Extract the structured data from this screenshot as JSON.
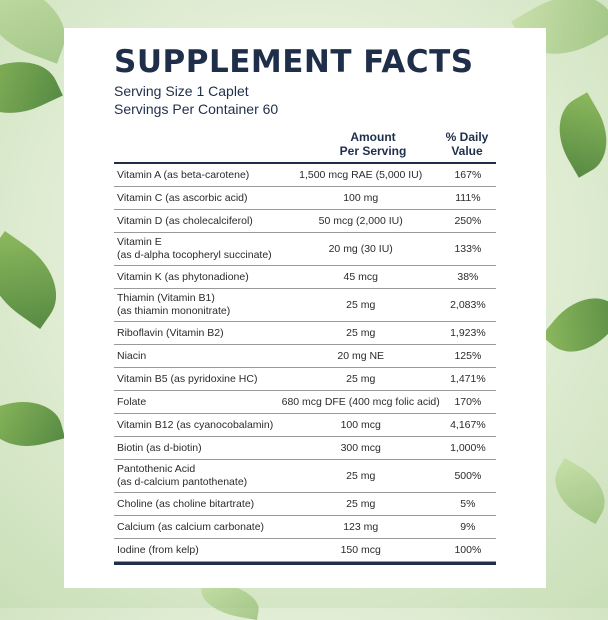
{
  "panel": {
    "title": "SUPPLEMENT FACTS",
    "serving_size": "Serving Size 1 Caplet",
    "servings_per_container": "Servings Per Container 60",
    "col_amount": "Amount\nPer Serving",
    "col_amount_line1": "Amount",
    "col_amount_line2": "Per Serving",
    "col_dv_line1": "% Daily",
    "col_dv_line2": "Value"
  },
  "rows": [
    {
      "name1": "Vitamin A (as beta-carotene)",
      "name2": "",
      "amount": "1,500 mcg RAE (5,000 IU)",
      "dv": "167%"
    },
    {
      "name1": "Vitamin C (as ascorbic acid)",
      "name2": "",
      "amount": "100 mg",
      "dv": "111%"
    },
    {
      "name1": "Vitamin D (as cholecalciferol)",
      "name2": "",
      "amount": "50 mcg (2,000 IU)",
      "dv": "250%"
    },
    {
      "name1": "Vitamin E",
      "name2": "(as d-alpha tocopheryl succinate)",
      "amount": "20 mg (30 IU)",
      "dv": "133%"
    },
    {
      "name1": "Vitamin K (as phytonadione)",
      "name2": "",
      "amount": "45 mcg",
      "dv": "38%"
    },
    {
      "name1": "Thiamin (Vitamin B1)",
      "name2": "(as thiamin mononitrate)",
      "amount": "25 mg",
      "dv": "2,083%"
    },
    {
      "name1": "Riboflavin (Vitamin B2)",
      "name2": "",
      "amount": "25 mg",
      "dv": "1,923%"
    },
    {
      "name1": "Niacin",
      "name2": "",
      "amount": "20 mg NE",
      "dv": "125%"
    },
    {
      "name1": "Vitamin B5 (as pyridoxine HC)",
      "name2": "",
      "amount": "25 mg",
      "dv": "1,471%"
    },
    {
      "name1": "Folate",
      "name2": "",
      "amount": "680 mcg DFE (400 mcg folic acid)",
      "dv": "170%"
    },
    {
      "name1": "Vitamin B12 (as cyanocobalamin)",
      "name2": "",
      "amount": "100 mcg",
      "dv": "4,167%"
    },
    {
      "name1": "Biotin (as d-biotin)",
      "name2": "",
      "amount": "300 mcg",
      "dv": "1,000%"
    },
    {
      "name1": "Pantothenic Acid",
      "name2": "(as d-calcium pantothenate)",
      "amount": "25 mg",
      "dv": "500%"
    },
    {
      "name1": "Choline (as choline bitartrate)",
      "name2": "",
      "amount": "25 mg",
      "dv": "5%"
    },
    {
      "name1": "Calcium (as calcium carbonate)",
      "name2": "",
      "amount": "123 mg",
      "dv": "9%"
    },
    {
      "name1": "Iodine (from kelp)",
      "name2": "",
      "amount": "150 mcg",
      "dv": "100%"
    }
  ],
  "colors": {
    "navy": "#1f2f4a",
    "leaf": "#3f7a2a"
  }
}
